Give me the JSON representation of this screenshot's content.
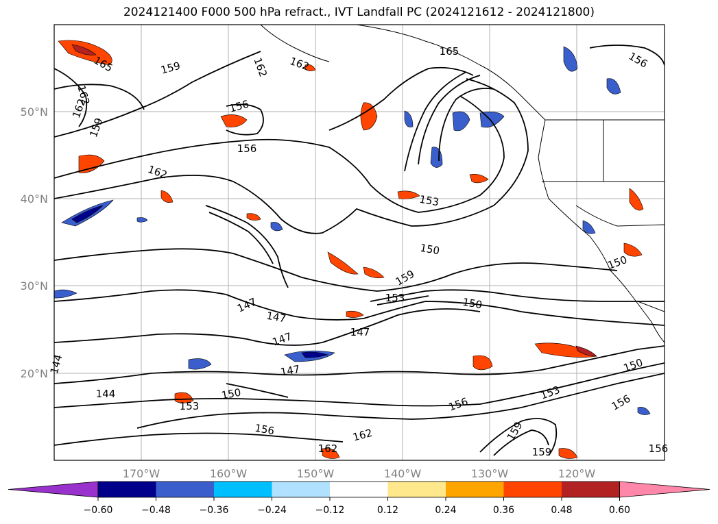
{
  "title": "2024121400 F000 500 hPa refract., IVT Landfall PC (2024121612 - 2024121800)",
  "map": {
    "lat_labels": [
      "50°N",
      "40°N",
      "30°N",
      "20°N"
    ],
    "lon_labels": [
      "170°W",
      "160°W",
      "150°W",
      "140°W",
      "130°W",
      "120°W"
    ],
    "contour_labels": [
      "165",
      "159",
      "162",
      "162",
      "156",
      "162",
      "159",
      "156",
      "162",
      "153",
      "150",
      "159",
      "153",
      "150",
      "150",
      "147",
      "147",
      "147",
      "147",
      "147",
      "144",
      "144",
      "150",
      "153",
      "156",
      "153",
      "156",
      "150",
      "156",
      "162",
      "162",
      "159",
      "159",
      "156",
      "156",
      "162",
      "165"
    ]
  },
  "colorbar": {
    "ticks": [
      "−0.60",
      "−0.48",
      "−0.36",
      "−0.24",
      "−0.12",
      "0.12",
      "0.24",
      "0.36",
      "0.48",
      "0.60"
    ],
    "colors": [
      "#9932cc",
      "#00008b",
      "#3a5fcd",
      "#00bfff",
      "#b0e2ff",
      "#ffffff",
      "#ffe88c",
      "#ffa500",
      "#ff4500",
      "#b22222",
      "#ff88aa"
    ]
  }
}
